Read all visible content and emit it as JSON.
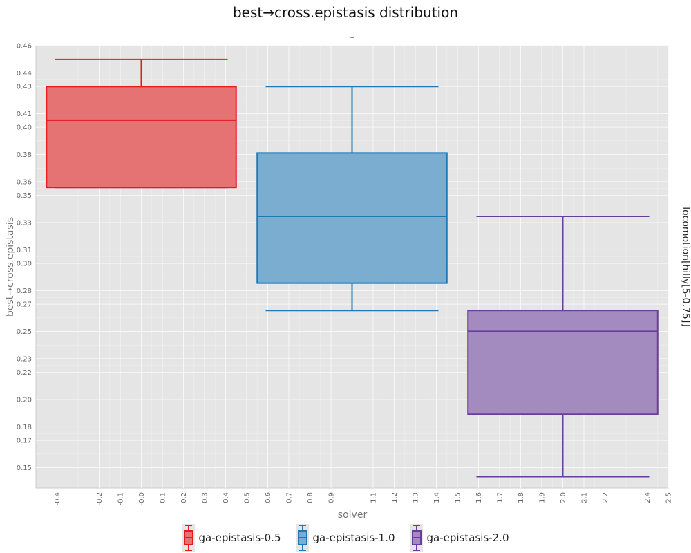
{
  "chart_data": {
    "type": "box",
    "title": "best→cross.epistasis distribution",
    "subtitle": "–",
    "xlabel": "solver",
    "ylabel": "best→cross.epistasis",
    "facet_label": "locomotion[hilly[5-0.75]]",
    "xlim": [
      -0.5,
      2.5
    ],
    "ylim": [
      0.135,
      0.46
    ],
    "grid": true,
    "legend_position": "bottom",
    "x_ticks": [
      "-0.4",
      "-0.2",
      "-0.1",
      "-0.0",
      "0.1",
      "0.2",
      "0.3",
      "0.4",
      "0.5",
      "0.6",
      "0.7",
      "0.8",
      "0.9",
      "1.1",
      "1.2",
      "1.3",
      "1.4",
      "1.5",
      "1.6",
      "1.7",
      "1.8",
      "1.9",
      "2.0",
      "2.1",
      "2.2",
      "2.4",
      "2.5"
    ],
    "y_ticks": [
      "0.15",
      "0.17",
      "0.18",
      "0.20",
      "0.22",
      "0.23",
      "0.25",
      "0.27",
      "0.28",
      "0.30",
      "0.31",
      "0.33",
      "0.35",
      "0.36",
      "0.38",
      "0.40",
      "0.41",
      "0.43",
      "0.44",
      "0.46"
    ],
    "series": [
      {
        "name": "ga-epistasis-0.5",
        "color": "#e41a1c",
        "fill": "#e57373",
        "whisker_low": 0.3558,
        "q1": 0.3558,
        "median": 0.4052,
        "q3": 0.4299,
        "whisker_high": 0.4499
      },
      {
        "name": "ga-epistasis-1.0",
        "color": "#1f78b4",
        "fill": "#7badd0",
        "whisker_low": 0.2654,
        "q1": 0.2855,
        "median": 0.3346,
        "q3": 0.3811,
        "whisker_high": 0.4299
      },
      {
        "name": "ga-epistasis-2.0",
        "color": "#6a3d9a",
        "fill": "#a48bbf",
        "whisker_low": 0.1434,
        "q1": 0.1892,
        "median": 0.2501,
        "q3": 0.2654,
        "whisker_high": 0.3346
      }
    ]
  }
}
